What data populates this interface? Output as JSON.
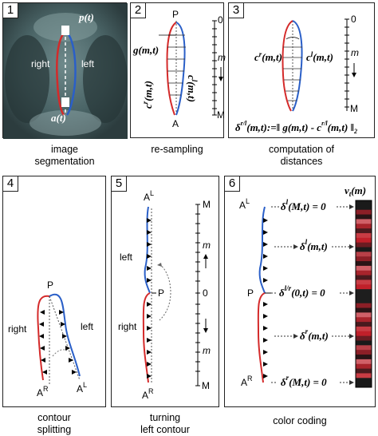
{
  "panels": [
    {
      "number": "1",
      "caption_line1": "image",
      "caption_line2": "segmentation",
      "labels": {
        "p": "p(t)",
        "a": "a(t)",
        "right": "right",
        "left": "left"
      }
    },
    {
      "number": "2",
      "caption_line1": "re-sampling",
      "caption_line2": "",
      "labels": {
        "P": "P",
        "A": "A",
        "g": "g(m,t)",
        "cr": "c",
        "cr_sup": "r",
        "cr_args": "(m,t)",
        "cl": "c",
        "cl_sup": "l",
        "cl_args": "(m,t)",
        "zero": "0",
        "m": "m",
        "M": "M"
      }
    },
    {
      "number": "3",
      "caption_line1": "computation of",
      "caption_line2": "distances",
      "labels": {
        "cr": "c",
        "cr_sup": "r",
        "cr_args": "(m,t)",
        "cl": "c",
        "cl_sup": "l",
        "cl_args": "(m,t)",
        "zero": "0",
        "m": "m",
        "M": "M",
        "formula_delta": "δ",
        "formula_sup": "r/l",
        "formula_mid": "(m,t):=‖ g(m,t) - c",
        "formula_sup2": "r/l",
        "formula_end": "(m,t) ‖",
        "formula_sub": "2"
      }
    },
    {
      "number": "4",
      "caption_line1": "contour",
      "caption_line2": "splitting",
      "labels": {
        "P": "P",
        "right": "right",
        "left": "left",
        "AR": "A",
        "AR_sup": "R",
        "AL": "A",
        "AL_sup": "L"
      }
    },
    {
      "number": "5",
      "caption_line1": "turning",
      "caption_line2": "left contour",
      "labels": {
        "AL": "A",
        "AL_sup": "L",
        "left": "left",
        "P": "P",
        "right": "right",
        "AR": "A",
        "AR_sup": "R",
        "M_top": "M",
        "m_top": "m",
        "zero": "0",
        "m_bot": "m",
        "M_bot": "M"
      }
    },
    {
      "number": "6",
      "caption_line1": "color coding",
      "caption_line2": "",
      "labels": {
        "AL": "A",
        "AL_sup": "L",
        "P": "P",
        "AR": "A",
        "AR_sup": "R",
        "vt": "v",
        "vt_sub": "t",
        "vt_args": "(m)",
        "e1": "δ",
        "e1_sup": "l",
        "e1_args": "(M,t) = 0",
        "e2": "δ",
        "e2_sup": "l",
        "e2_args": "(m,t)",
        "e3": "δ",
        "e3_sup": "l/r",
        "e3_args": "(0,t) = 0",
        "e4": "δ",
        "e4_sup": "r",
        "e4_args": "(m,t)",
        "e5": "δ",
        "e5_sup": "r",
        "e5_args": "(M,t) = 0"
      }
    }
  ],
  "colors": {
    "right_contour": "#d42a2a",
    "left_contour": "#2a5fc8",
    "guide": "#555555",
    "ct_background": "#3b4f52",
    "bar_dark": "#1a1a1a",
    "bar_red": "#c0202a"
  }
}
